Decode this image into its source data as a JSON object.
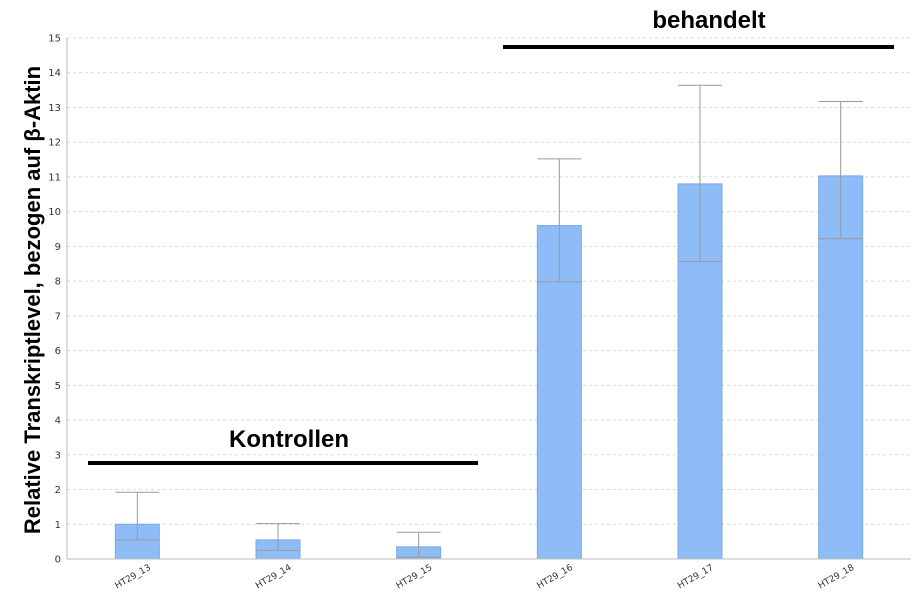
{
  "chart_data": {
    "type": "bar",
    "ylabel": "Relative Transkriptlevel, bezogen auf β-Aktin",
    "ylim": [
      0,
      15
    ],
    "yticks": [
      0,
      1,
      2,
      3,
      4,
      5,
      6,
      7,
      8,
      9,
      10,
      11,
      12,
      13,
      14,
      15
    ],
    "grid": true,
    "categories": [
      "HT29_13",
      "HT29_14",
      "HT29_15",
      "HT29_16",
      "HT29_17",
      "HT29_18"
    ],
    "values": [
      1.0,
      0.55,
      0.35,
      9.6,
      10.8,
      11.03
    ],
    "error_low": [
      0.55,
      0.25,
      0.05,
      7.98,
      8.57,
      9.22
    ],
    "error_high": [
      1.92,
      1.02,
      0.77,
      11.52,
      13.64,
      13.17
    ],
    "groups": [
      {
        "label": "Kontrollen",
        "categories": [
          "HT29_13",
          "HT29_14",
          "HT29_15"
        ]
      },
      {
        "label": "behandelt",
        "categories": [
          "HT29_16",
          "HT29_17",
          "HT29_18"
        ]
      }
    ],
    "colors": {
      "bar": "#8ebcf6",
      "bar_edge": "#7aa8e6",
      "error": "#9a9a9a",
      "grid": "#d8d8d8"
    }
  }
}
